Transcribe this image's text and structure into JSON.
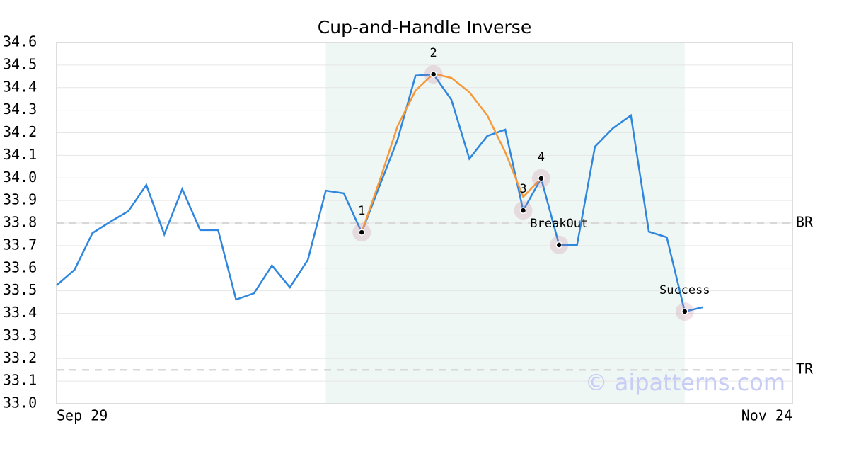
{
  "chart_data": {
    "type": "line",
    "title": "Cup-and-Handle Inverse",
    "watermark": "© aipatterns.com",
    "xlim": [
      0,
      41
    ],
    "xticks": [
      {
        "value": 0,
        "label": "Sep 29"
      },
      {
        "value": 41,
        "label": "Nov 24"
      }
    ],
    "ylim": [
      33.0,
      34.6
    ],
    "yticks": [
      {
        "value": 33.0,
        "label": "33.0"
      },
      33.1,
      33.2,
      33.3,
      33.4,
      33.5,
      33.6,
      33.7,
      33.8,
      33.9,
      {
        "value": 34.0,
        "label": "34.0"
      },
      34.1,
      34.2,
      34.3,
      34.4,
      34.5,
      34.6
    ],
    "grid": true,
    "shade": {
      "x": [
        15,
        35
      ],
      "color": "#eef7f3"
    },
    "series": [
      {
        "color": "#2e86de",
        "x": [
          0,
          1,
          2,
          3,
          4,
          5,
          6,
          7,
          8,
          9,
          10,
          11,
          12,
          13,
          14,
          15,
          16,
          17,
          18,
          19,
          20,
          21,
          22,
          23,
          24,
          25,
          26,
          27,
          28,
          29,
          30,
          31,
          32,
          33,
          34,
          35,
          36
        ],
        "values": [
          33.524,
          33.593,
          33.756,
          33.806,
          33.853,
          33.969,
          33.75,
          33.951,
          33.769,
          33.769,
          33.461,
          33.489,
          33.612,
          33.515,
          33.637,
          33.944,
          33.932,
          33.759,
          33.966,
          34.17,
          34.453,
          34.459,
          34.346,
          34.085,
          34.186,
          34.214,
          33.856,
          33.998,
          33.703,
          33.703,
          34.139,
          34.22,
          34.277,
          33.762,
          33.737,
          33.408,
          33.427
        ]
      },
      {
        "color": "#f7993a",
        "x": [
          17,
          18,
          19,
          20,
          21,
          22,
          23,
          24,
          25,
          26,
          27
        ],
        "values": [
          33.759,
          33.988,
          34.23,
          34.387,
          34.462,
          34.443,
          34.38,
          34.277,
          34.114,
          33.916,
          33.998
        ]
      }
    ],
    "points": [
      {
        "label": "1",
        "x": 17,
        "y": 33.759
      },
      {
        "label": "2",
        "x": 21,
        "y": 34.459
      },
      {
        "label": "3",
        "x": 26,
        "y": 33.856
      },
      {
        "label": "4",
        "x": 27,
        "y": 33.998
      },
      {
        "label": "BreakOut",
        "x": 28,
        "y": 33.703
      },
      {
        "label": "Success",
        "x": 35,
        "y": 33.408
      }
    ],
    "hlines": [
      {
        "label": "BR",
        "value": 33.8
      },
      {
        "label": "TR",
        "value": 33.15
      }
    ]
  }
}
